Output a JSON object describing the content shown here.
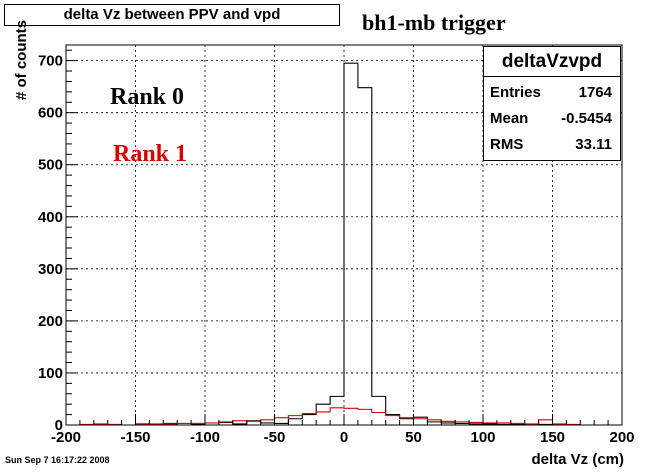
{
  "header": {
    "title": "delta Vz between PPV and vpd",
    "trigger": "bh1-mb trigger"
  },
  "legend": {
    "rank0": "Rank 0",
    "rank1": "Rank 1"
  },
  "stats": {
    "title": "deltaVzvpd",
    "rows": [
      {
        "key": "Entries",
        "value": "1764"
      },
      {
        "key": "Mean",
        "value": "-0.5454"
      },
      {
        "key": "RMS",
        "value": "33.11"
      }
    ]
  },
  "footer": {
    "timestamp": "Sun Sep  7 16:17:22 2008"
  },
  "colors": {
    "rank0": "#000000",
    "rank1": "#dd0000"
  },
  "chart_data": {
    "type": "histogram",
    "xlabel": "delta Vz (cm)",
    "ylabel": "# of counts",
    "xlim": [
      -200,
      200
    ],
    "ylim": [
      0,
      730
    ],
    "grid": true,
    "xticks": [
      -200,
      -150,
      -100,
      -50,
      0,
      50,
      100,
      150,
      200
    ],
    "yticks": [
      0,
      100,
      200,
      300,
      400,
      500,
      600,
      700
    ],
    "bin_width": 10,
    "bin_edges_start": -200,
    "series": [
      {
        "name": "Rank 0",
        "color": "#000000",
        "values": [
          0,
          0,
          1,
          0,
          0,
          2,
          1,
          3,
          0,
          1,
          0,
          5,
          2,
          8,
          4,
          3,
          12,
          20,
          40,
          55,
          695,
          648,
          55,
          20,
          12,
          15,
          6,
          4,
          3,
          2,
          2,
          1,
          1,
          0,
          1,
          0,
          0,
          0,
          0,
          0
        ]
      },
      {
        "name": "Rank 1",
        "color": "#dd0000",
        "values": [
          0,
          1,
          2,
          1,
          0,
          1,
          2,
          2,
          3,
          3,
          4,
          6,
          8,
          7,
          10,
          14,
          18,
          22,
          25,
          33,
          32,
          30,
          24,
          18,
          14,
          12,
          10,
          7,
          6,
          5,
          4,
          4,
          3,
          2,
          10,
          2,
          1,
          0,
          0,
          0
        ]
      }
    ]
  }
}
